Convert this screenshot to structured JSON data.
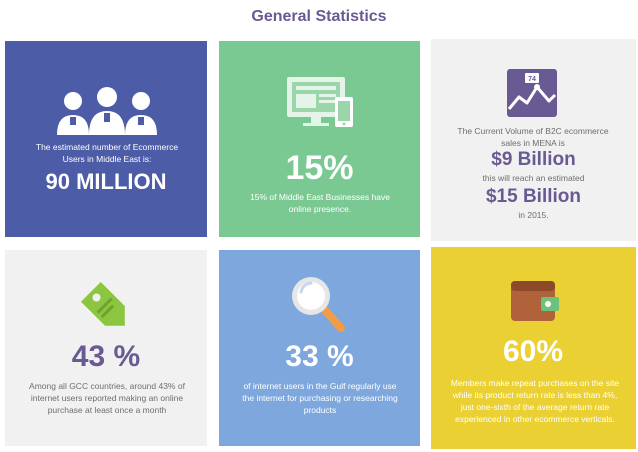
{
  "title": "General Statistics",
  "cards": {
    "users": {
      "text": "The estimated number of Ecommerce Users in Middle East is:",
      "big": "90 MILLION"
    },
    "online": {
      "big": "15%",
      "text": "15% of Middle East Businesses have online presence."
    },
    "b2c": {
      "badge": "74",
      "text": "The Current Volume of B2C ecommerce sales in MENA is",
      "big1": "$9 Billion",
      "mid": "this will reach an estimated",
      "big2": "$15 Billion",
      "end": "in 2015."
    },
    "gcc": {
      "big": "43 %",
      "text": "Among all GCC countries, around 43% of internet users reported making an online purchase at least once a month"
    },
    "gulf": {
      "big": "33 %",
      "text": "of internet users in the Gulf regularly use the internet for purchasing or researching products"
    },
    "repeat": {
      "big": "60%",
      "text": "Members make repeat purchases on the site while its product return rate is less than 4%, just one-sixth of the average return rate experienced in other ecommerce verticals."
    }
  },
  "colors": {
    "purple_card": "#4d5ca7",
    "green_card": "#7bc992",
    "blue_card": "#7ea7de",
    "yellow_card": "#ead032",
    "grey_card": "#f1f1f1",
    "accent_purple": "#6a5a93"
  },
  "icons": [
    "users-group-icon",
    "monitor-mobile-icon",
    "growth-chart-icon",
    "price-tag-icon",
    "magnifier-icon",
    "wallet-icon"
  ]
}
